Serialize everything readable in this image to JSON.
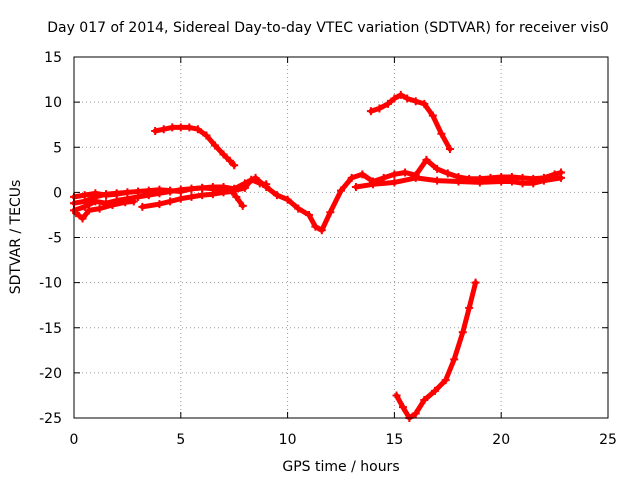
{
  "chart_data": {
    "type": "scatter",
    "title": "Day 017 of 2014, Sidereal Day-to-day VTEC variation (SDTVAR) for receiver vis0",
    "xlabel": "GPS time / hours",
    "ylabel": "SDTVAR / TECUs",
    "xlim": [
      0,
      25
    ],
    "ylim": [
      -25,
      15
    ],
    "xticks": [
      0,
      5,
      10,
      15,
      20,
      25
    ],
    "yticks": [
      -25,
      -20,
      -15,
      -10,
      -5,
      0,
      5,
      10,
      15
    ],
    "grid": true,
    "color": "#ff0000",
    "series": [
      {
        "name": "arc-high-left",
        "points": [
          [
            3.8,
            6.8
          ],
          [
            4.2,
            7.0
          ],
          [
            4.6,
            7.2
          ],
          [
            5.0,
            7.2
          ],
          [
            5.4,
            7.2
          ],
          [
            5.8,
            7.0
          ],
          [
            6.2,
            6.3
          ],
          [
            6.6,
            5.2
          ],
          [
            7.0,
            4.2
          ],
          [
            7.3,
            3.5
          ],
          [
            7.5,
            3.0
          ]
        ]
      },
      {
        "name": "arc-high-right",
        "points": [
          [
            13.9,
            9.0
          ],
          [
            14.3,
            9.3
          ],
          [
            14.7,
            9.8
          ],
          [
            15.0,
            10.4
          ],
          [
            15.3,
            10.8
          ],
          [
            15.6,
            10.4
          ],
          [
            16.0,
            10.1
          ],
          [
            16.4,
            9.8
          ],
          [
            16.8,
            8.5
          ],
          [
            17.2,
            6.5
          ],
          [
            17.6,
            4.8
          ]
        ]
      },
      {
        "name": "arc-low",
        "points": [
          [
            15.1,
            -22.5
          ],
          [
            15.4,
            -23.8
          ],
          [
            15.7,
            -25.0
          ],
          [
            16.0,
            -24.5
          ],
          [
            16.4,
            -23.0
          ],
          [
            16.9,
            -22.0
          ],
          [
            17.4,
            -20.8
          ],
          [
            17.8,
            -18.5
          ],
          [
            18.2,
            -15.5
          ],
          [
            18.5,
            -12.8
          ],
          [
            18.8,
            -10.0
          ]
        ]
      },
      {
        "name": "main-a",
        "points": [
          [
            0,
            -2.0
          ],
          [
            0.5,
            -1.6
          ],
          [
            1,
            -1.0
          ],
          [
            1.5,
            -1.2
          ],
          [
            2,
            -0.9
          ],
          [
            2.5,
            -0.7
          ],
          [
            3,
            -0.5
          ],
          [
            3.5,
            -0.3
          ],
          [
            4,
            -0.1
          ],
          [
            4.5,
            0.1
          ],
          [
            5,
            0.3
          ],
          [
            5.5,
            0.4
          ],
          [
            6,
            0.5
          ],
          [
            6.5,
            0.6
          ],
          [
            7,
            0.6
          ],
          [
            7.5,
            0.4
          ],
          [
            8,
            1.0
          ],
          [
            8.5,
            1.6
          ],
          [
            9,
            0.6
          ],
          [
            9.5,
            -0.3
          ],
          [
            10,
            -0.8
          ],
          [
            10.5,
            -1.8
          ],
          [
            11,
            -2.5
          ],
          [
            11.3,
            -3.8
          ],
          [
            11.6,
            -4.2
          ],
          [
            12,
            -2.2
          ],
          [
            12.5,
            0.2
          ],
          [
            13,
            1.6
          ],
          [
            13.5,
            2.0
          ],
          [
            14,
            1.2
          ],
          [
            14.5,
            1.6
          ],
          [
            15,
            2.0
          ],
          [
            15.5,
            2.2
          ],
          [
            16,
            1.9
          ],
          [
            16.5,
            3.6
          ],
          [
            17,
            2.6
          ],
          [
            17.5,
            2.1
          ],
          [
            18,
            1.7
          ],
          [
            18.5,
            1.5
          ],
          [
            19,
            1.5
          ],
          [
            19.5,
            1.6
          ],
          [
            20,
            1.7
          ],
          [
            20.5,
            1.7
          ],
          [
            21,
            1.6
          ],
          [
            21.5,
            1.5
          ],
          [
            22,
            1.6
          ],
          [
            22.5,
            2.0
          ],
          [
            22.8,
            2.2
          ]
        ]
      },
      {
        "name": "main-b",
        "points": [
          [
            0,
            -0.5
          ],
          [
            0.5,
            -0.3
          ],
          [
            1,
            -0.1
          ],
          [
            1.5,
            -0.3
          ],
          [
            2,
            -0.2
          ],
          [
            2.5,
            0
          ],
          [
            3,
            0.1
          ],
          [
            3.5,
            0.2
          ],
          [
            4,
            0.3
          ],
          [
            4.5,
            0.2
          ],
          [
            5,
            0.1
          ],
          [
            5.5,
            0.4
          ],
          [
            6,
            0.5
          ],
          [
            6.5,
            0.4
          ],
          [
            7,
            0.3
          ],
          [
            7.5,
            0.2
          ],
          [
            8,
            0.5
          ],
          [
            8.3,
            1.4
          ],
          [
            8.7,
            1.0
          ],
          [
            9,
            0.9
          ]
        ]
      },
      {
        "name": "main-c",
        "points": [
          [
            0,
            -1.2
          ],
          [
            0.5,
            -1.0
          ],
          [
            1,
            -0.5
          ],
          [
            1.5,
            -0.2
          ],
          [
            2,
            -0.1
          ],
          [
            2.5,
            0
          ]
        ]
      },
      {
        "name": "main-d",
        "points": [
          [
            0.1,
            -2.3
          ],
          [
            0.4,
            -2.9
          ],
          [
            0.7,
            -2.0
          ],
          [
            1.2,
            -1.8
          ],
          [
            1.8,
            -1.4
          ],
          [
            2.4,
            -1.1
          ],
          [
            2.8,
            -1.0
          ]
        ]
      },
      {
        "name": "lower-ramp",
        "points": [
          [
            3.2,
            -1.6
          ],
          [
            4,
            -1.3
          ],
          [
            4.5,
            -1.0
          ],
          [
            5,
            -0.7
          ],
          [
            5.5,
            -0.5
          ],
          [
            6,
            -0.3
          ],
          [
            6.5,
            -0.2
          ],
          [
            7,
            0
          ],
          [
            7.4,
            0.1
          ],
          [
            7.6,
            -0.5
          ],
          [
            7.9,
            -1.5
          ]
        ]
      },
      {
        "name": "right-band",
        "points": [
          [
            13.2,
            0.6
          ],
          [
            14,
            0.9
          ],
          [
            15,
            1.1
          ],
          [
            16,
            1.6
          ],
          [
            17,
            1.3
          ],
          [
            18,
            1.2
          ],
          [
            19,
            1.1
          ],
          [
            20,
            1.2
          ],
          [
            20.5,
            1.2
          ],
          [
            21,
            1.0
          ],
          [
            21.5,
            1.0
          ],
          [
            22,
            1.3
          ],
          [
            22.8,
            1.6
          ]
        ]
      }
    ]
  }
}
